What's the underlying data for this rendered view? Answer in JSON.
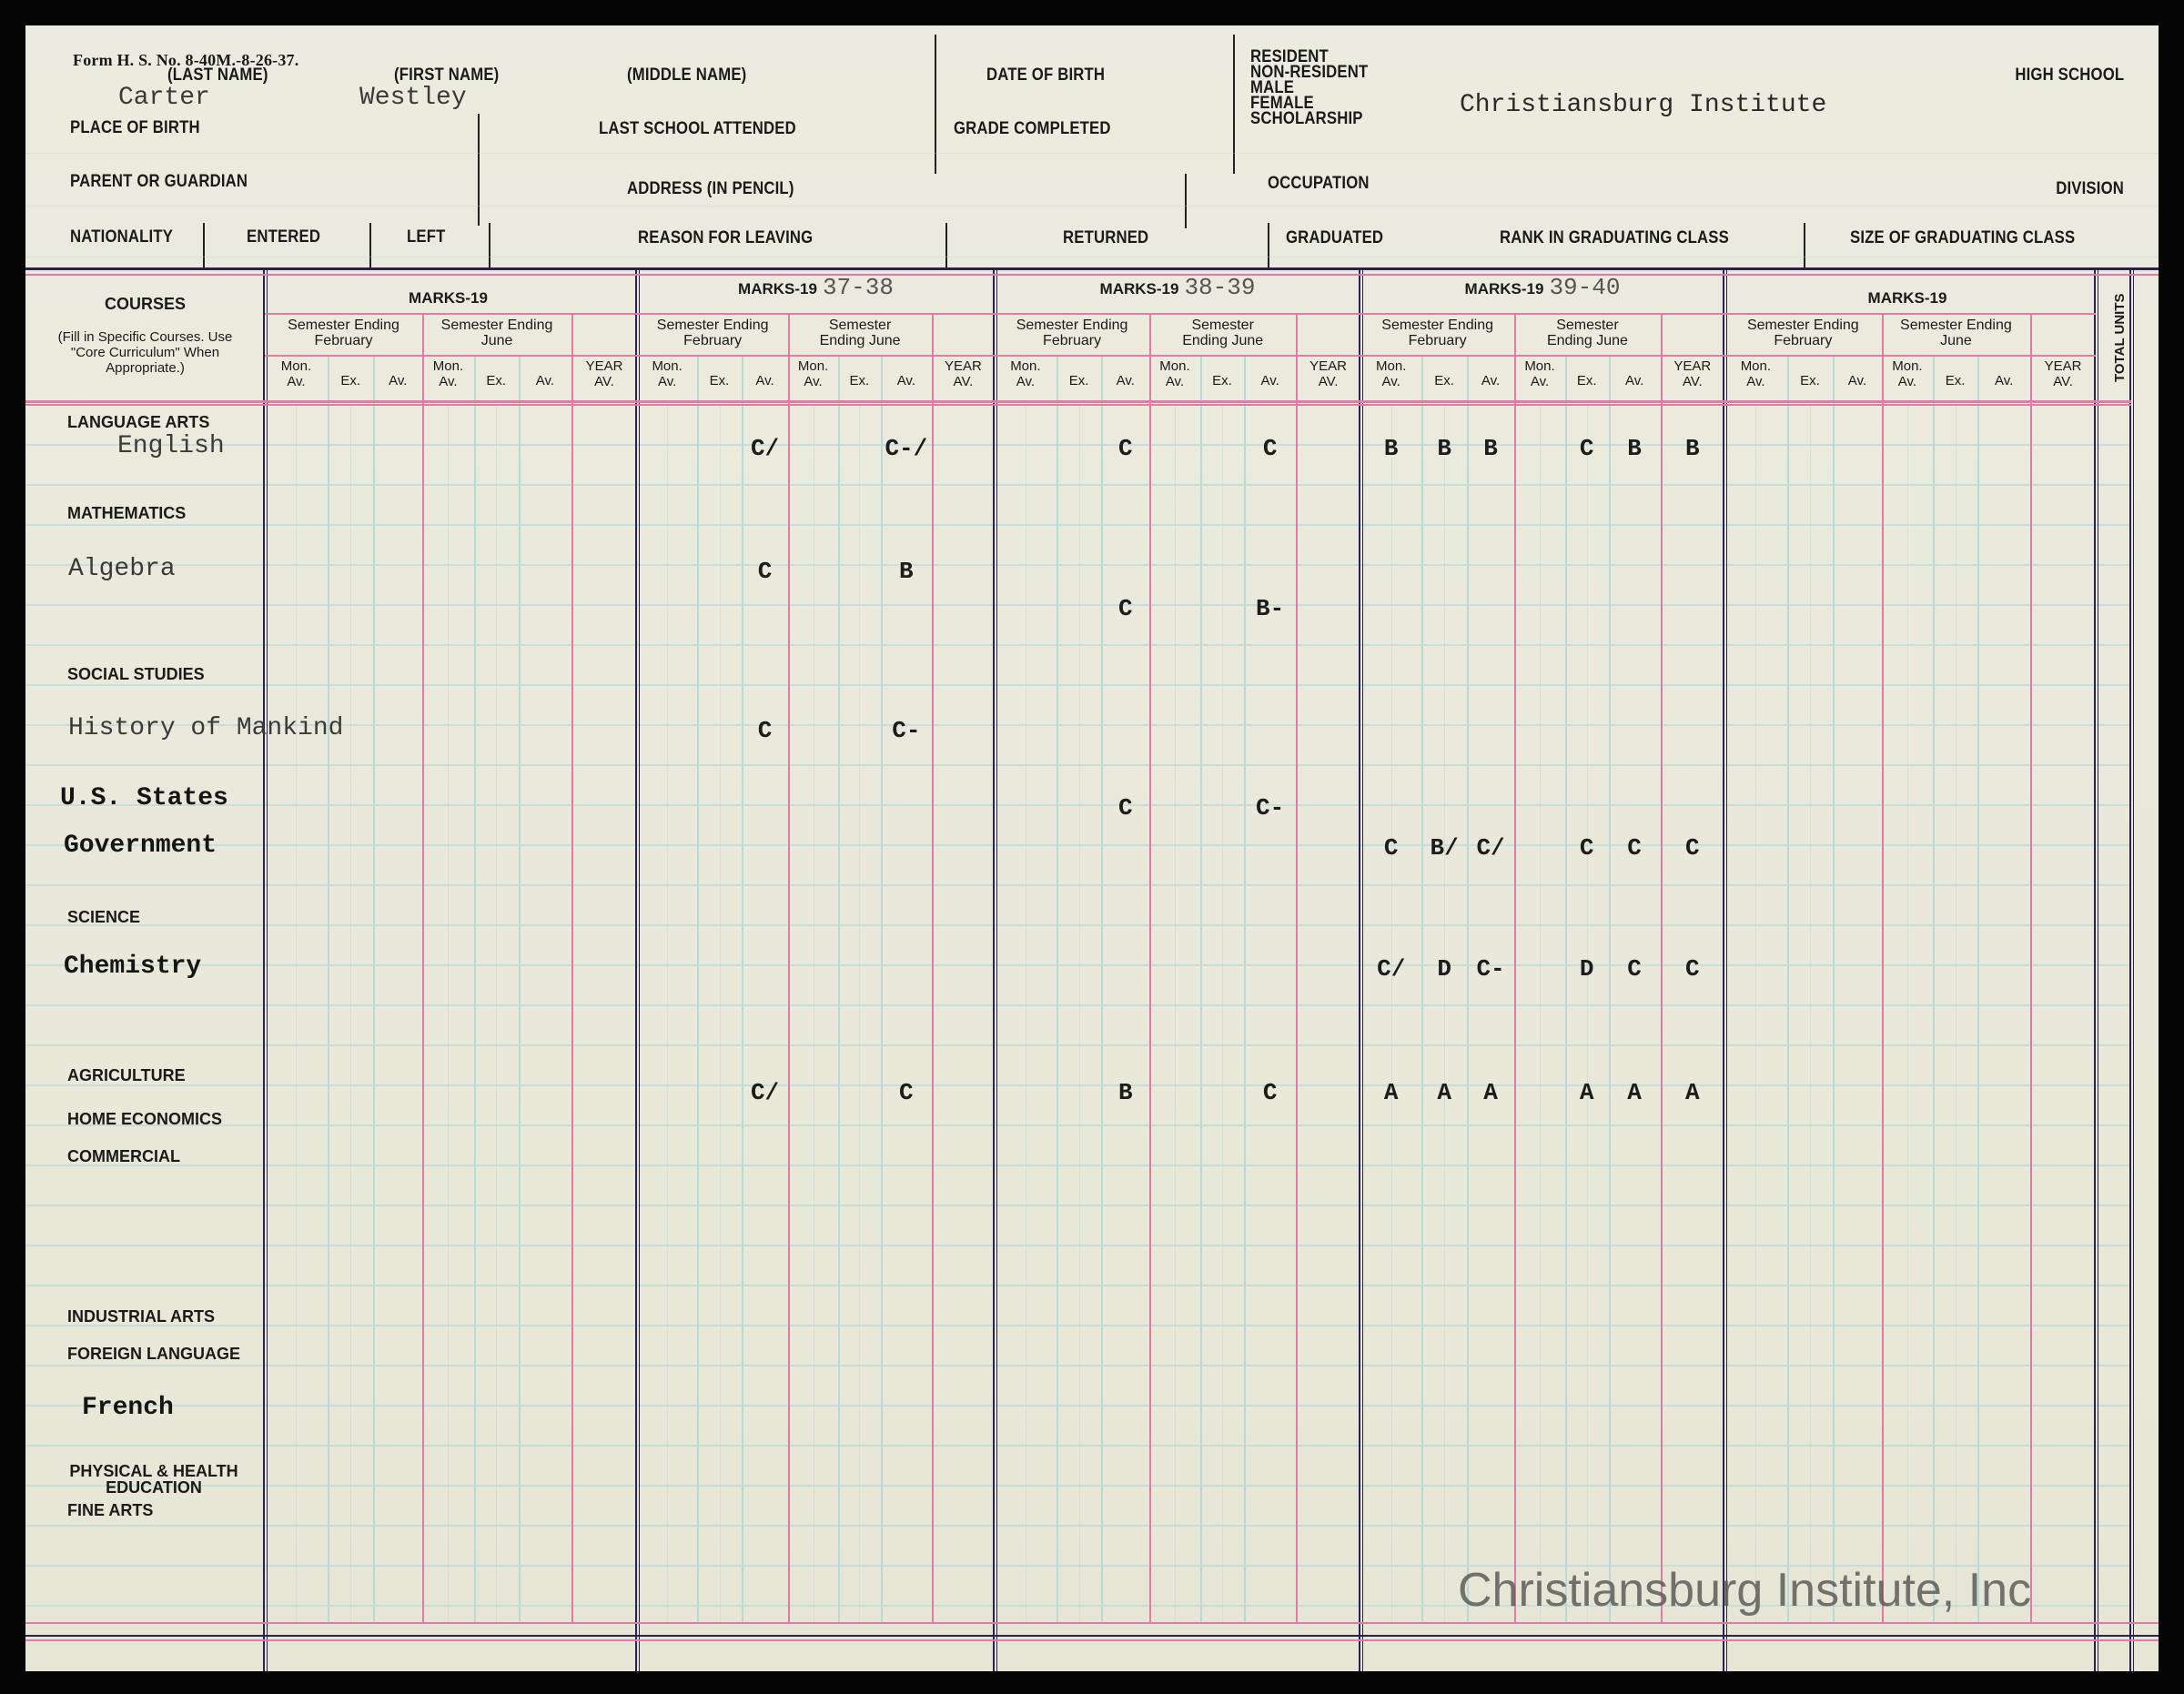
{
  "form_number": "Form H. S. No. 8-40M.-8-26-37.",
  "header": {
    "last_name_label": "(LAST NAME)",
    "first_name_label": "(FIRST NAME)",
    "middle_name_label": "(MIDDLE NAME)",
    "date_of_birth_label": "DATE OF BIRTH",
    "status_labels": [
      "RESIDENT",
      "NON-RESIDENT",
      "MALE",
      "FEMALE",
      "SCHOLARSHIP"
    ],
    "high_school_label": "HIGH SCHOOL",
    "last_name_value": "Carter",
    "first_name_value": "Westley",
    "place_of_birth_label": "PLACE OF BIRTH",
    "last_school_label": "LAST SCHOOL ATTENDED",
    "grade_completed_label": "GRADE COMPLETED",
    "school_value": "Christiansburg Institute",
    "parent_label": "PARENT OR GUARDIAN",
    "address_label": "ADDRESS (IN PENCIL)",
    "occupation_label": "OCCUPATION",
    "division_label": "DIVISION",
    "nationality_label": "NATIONALITY",
    "entered_label": "ENTERED",
    "left_label": "LEFT",
    "reason_label": "REASON FOR LEAVING",
    "returned_label": "RETURNED",
    "graduated_label": "GRADUATED",
    "rank_label": "RANK IN GRADUATING CLASS",
    "size_label": "SIZE OF GRADUATING CLASS"
  },
  "courses_header": {
    "title": "COURSES",
    "note": "(Fill in Specific Courses. Use \"Core Curriculum\" When Appropriate.)",
    "total_units": "TOTAL UNITS"
  },
  "mark_groups": [
    {
      "label": "MARKS-19",
      "year": ""
    },
    {
      "label": "MARKS-19",
      "year": "37-38"
    },
    {
      "label": "MARKS-19",
      "year": "38-39"
    },
    {
      "label": "MARKS-19",
      "year": "39-40"
    },
    {
      "label": "MARKS-19",
      "year": ""
    }
  ],
  "semester_labels": {
    "feb": "Semester Ending February",
    "june": "Semester Ending June"
  },
  "column_labels": [
    "Mon. Av.",
    "Ex.",
    "Av.",
    "Mon. Av.",
    "Ex.",
    "Av.",
    "YEAR AV."
  ],
  "categories": [
    "LANGUAGE ARTS",
    "MATHEMATICS",
    "SOCIAL STUDIES",
    "SCIENCE",
    "AGRICULTURE",
    "HOME ECONOMICS",
    "COMMERCIAL",
    "INDUSTRIAL ARTS",
    "FOREIGN LANGUAGE",
    "PHYSICAL & HEALTH EDUCATION",
    "FINE ARTS"
  ],
  "courses": [
    {
      "name": "English",
      "marks": [
        {
          "year": "37-38",
          "values": [
            "",
            "",
            "C/",
            "",
            "",
            "C-/",
            ""
          ]
        },
        {
          "year": "38-39",
          "values": [
            "",
            "",
            "C",
            "",
            "",
            "C",
            ""
          ]
        },
        {
          "year": "39-40",
          "values": [
            "B",
            "B",
            "B",
            "",
            "C",
            "B",
            "B"
          ]
        }
      ]
    },
    {
      "name": "Algebra",
      "marks": [
        {
          "year": "37-38",
          "values": [
            "",
            "",
            "C",
            "",
            "",
            "B",
            ""
          ]
        }
      ]
    },
    {
      "name": "",
      "marks": [
        {
          "year": "38-39",
          "values": [
            "",
            "",
            "C",
            "",
            "",
            "B-",
            ""
          ]
        }
      ]
    },
    {
      "name": "History of Mankind",
      "marks": [
        {
          "year": "37-38",
          "values": [
            "",
            "",
            "C",
            "",
            "",
            "C-",
            ""
          ]
        }
      ]
    },
    {
      "name": "U.S. States",
      "marks": [
        {
          "year": "38-39",
          "values": [
            "",
            "",
            "C",
            "",
            "",
            "C-",
            ""
          ]
        }
      ]
    },
    {
      "name": "Government",
      "marks": [
        {
          "year": "39-40",
          "values": [
            "C",
            "B/",
            "C/",
            "",
            "C",
            "C",
            "C"
          ]
        }
      ]
    },
    {
      "name": "Chemistry",
      "marks": [
        {
          "year": "39-40",
          "values": [
            "C/",
            "D",
            "C-",
            "",
            "D",
            "C",
            "C"
          ]
        }
      ]
    },
    {
      "name": "",
      "marks": [
        {
          "year": "37-38",
          "values": [
            "",
            "",
            "C/",
            "",
            "",
            "C",
            ""
          ]
        },
        {
          "year": "38-39",
          "values": [
            "",
            "",
            "B",
            "",
            "",
            "C",
            ""
          ]
        },
        {
          "year": "39-40",
          "values": [
            "A",
            "A",
            "A",
            "",
            "A",
            "A",
            "A"
          ]
        }
      ]
    },
    {
      "name": "French",
      "marks": []
    }
  ],
  "watermark": "Christiansburg Institute, Inc",
  "colors": {
    "paper": "#e9e8da",
    "grid_cyan": "#b5dcd8",
    "rule_pink": "#e07aa6",
    "rule_navy": "#2a2350"
  }
}
